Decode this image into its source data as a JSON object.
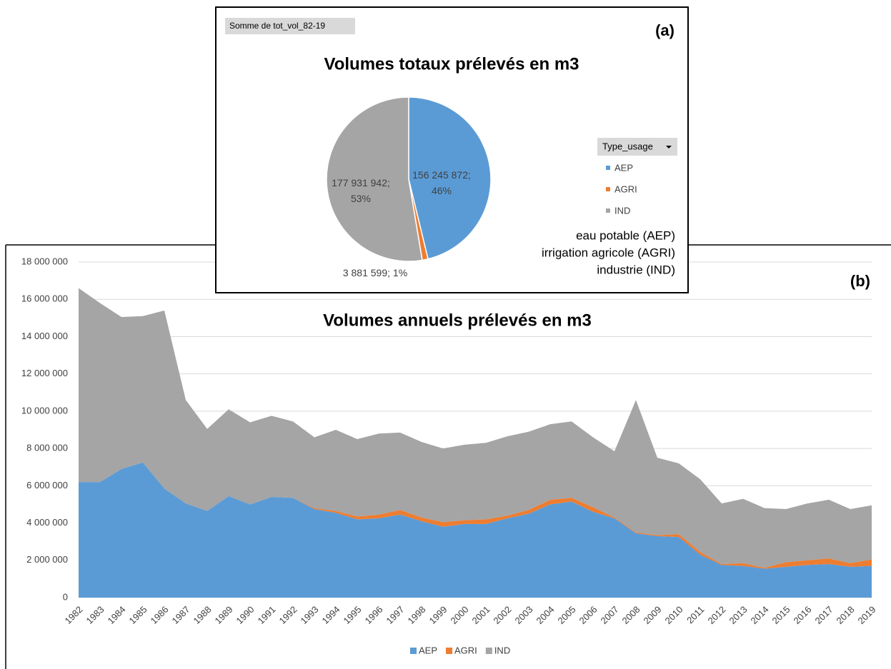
{
  "chart_data": [
    {
      "type": "pie",
      "title": "Volumes totaux prélevés en m3",
      "field_button": "Somme de tot_vol_82-19",
      "panel_label": "(a)",
      "legend_title": "Type_usage",
      "legend": "right",
      "categories": [
        "AEP",
        "AGRI",
        "IND"
      ],
      "values": [
        156245872,
        3881599,
        177931942
      ],
      "value_labels": [
        "156 245 872; 46%",
        "3 881 599; 1%",
        "177 931 942; 53%"
      ],
      "colors": [
        "#5b9bd5",
        "#ed7d31",
        "#a5a5a5"
      ],
      "annotations": [
        "eau potable (AEP)",
        "irrigation agricole (AGRI)",
        "industrie (IND)"
      ]
    },
    {
      "type": "stacked_area",
      "title": "Volumes annuels prélevés en m3",
      "panel_label": "(b)",
      "legend": "bottom",
      "grid": true,
      "categories": [
        "1982",
        "1983",
        "1984",
        "1985",
        "1986",
        "1987",
        "1988",
        "1989",
        "1990",
        "1991",
        "1992",
        "1993",
        "1994",
        "1995",
        "1996",
        "1997",
        "1998",
        "1999",
        "2000",
        "2001",
        "2002",
        "2003",
        "2004",
        "2005",
        "2006",
        "2007",
        "2008",
        "2009",
        "2010",
        "2011",
        "2012",
        "2013",
        "2014",
        "2015",
        "2016",
        "2017",
        "2018",
        "2019"
      ],
      "series": [
        {
          "name": "AEP",
          "color": "#5b9bd5",
          "values": [
            6200000,
            6200000,
            6900000,
            7250000,
            5850000,
            5050000,
            4650000,
            5450000,
            5000000,
            5400000,
            5350000,
            4750000,
            4550000,
            4200000,
            4250000,
            4450000,
            4100000,
            3800000,
            3950000,
            3950000,
            4250000,
            4500000,
            5000000,
            5150000,
            4600000,
            4250000,
            3450000,
            3300000,
            3250000,
            2300000,
            1750000,
            1700000,
            1550000,
            1650000,
            1750000,
            1800000,
            1650000,
            1700000
          ]
        },
        {
          "name": "AGRI",
          "color": "#ed7d31",
          "values": [
            0,
            0,
            0,
            0,
            0,
            0,
            0,
            0,
            0,
            0,
            0,
            50000,
            100000,
            150000,
            200000,
            250000,
            200000,
            250000,
            200000,
            250000,
            150000,
            200000,
            250000,
            200000,
            250000,
            50000,
            50000,
            50000,
            150000,
            150000,
            50000,
            150000,
            50000,
            250000,
            250000,
            300000,
            200000,
            350000
          ]
        },
        {
          "name": "IND",
          "color": "#a5a5a5",
          "values": [
            10400000,
            9600000,
            8150000,
            7850000,
            9550000,
            5550000,
            4400000,
            4650000,
            4400000,
            4350000,
            4100000,
            3800000,
            4350000,
            4150000,
            4350000,
            4150000,
            4050000,
            3950000,
            4050000,
            4100000,
            4250000,
            4200000,
            4050000,
            4100000,
            3750000,
            3550000,
            7100000,
            4150000,
            3800000,
            3900000,
            3250000,
            3450000,
            3200000,
            2850000,
            3050000,
            3150000,
            2900000,
            2900000
          ]
        }
      ],
      "ylim": [
        0,
        18000000
      ],
      "yticks": [
        0,
        {
          "value": 2000000,
          "label": "2 000 000"
        },
        {
          "value": 4000000,
          "label": "4 000 000"
        },
        {
          "value": 6000000,
          "label": "6 000 000"
        },
        {
          "value": 8000000,
          "label": "8 000 000"
        },
        {
          "value": 10000000,
          "label": "10 000 000"
        },
        {
          "value": 12000000,
          "label": "12 000 000"
        },
        {
          "value": 14000000,
          "label": "14 000 000"
        },
        {
          "value": 16000000,
          "label": "16 000 000"
        },
        {
          "value": 18000000,
          "label": "18 000 000"
        }
      ]
    }
  ]
}
